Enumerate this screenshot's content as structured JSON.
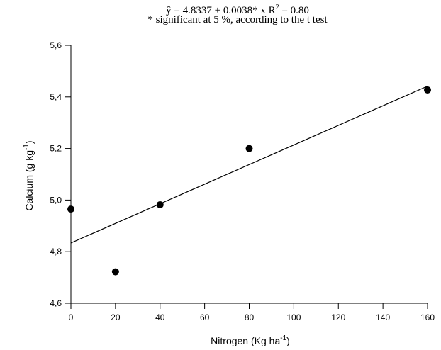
{
  "chart_data": {
    "type": "scatter",
    "annotations": {
      "equation_main": "ŷ = 4.8337 + 0.0038* x R",
      "equation_r2_sup": "2",
      "equation_tail": " = 0.80",
      "note": "* significant at 5 %, according to the t test"
    },
    "xlabel_main": "Nitrogen (Kg ha",
    "xlabel_sup": "-1",
    "xlabel_tail": ")",
    "ylabel_main": "Calcium (g kg",
    "ylabel_sup": "-1",
    "ylabel_tail": ")",
    "xlim": [
      0,
      160
    ],
    "ylim": [
      4.6,
      5.6
    ],
    "x_ticks": [
      0,
      20,
      40,
      60,
      80,
      100,
      120,
      140,
      160
    ],
    "x_tick_labels": [
      "0",
      "20",
      "40",
      "60",
      "80",
      "100",
      "120",
      "140",
      "160"
    ],
    "y_ticks": [
      4.6,
      4.8,
      5.0,
      5.2,
      5.4,
      5.6
    ],
    "y_tick_labels": [
      "4,6",
      "4,8",
      "5,0",
      "5,2",
      "5,4",
      "5,6"
    ],
    "points": [
      {
        "x": 0,
        "y": 4.965
      },
      {
        "x": 20,
        "y": 4.722
      },
      {
        "x": 40,
        "y": 4.982
      },
      {
        "x": 80,
        "y": 5.2
      },
      {
        "x": 160,
        "y": 5.427
      }
    ],
    "regression": {
      "intercept": 4.8337,
      "slope": 0.0038
    },
    "grid": false,
    "colors": {
      "marker": "#000000",
      "line": "#000000"
    }
  }
}
